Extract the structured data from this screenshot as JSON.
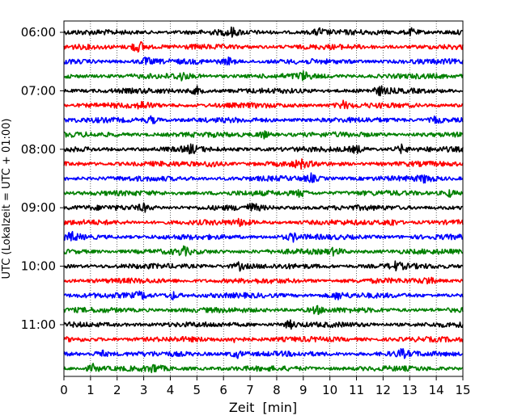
{
  "chart_data": {
    "type": "line",
    "subtype": "helicorder",
    "xlabel": "Zeit  [min]",
    "ylabel": "UTC (Lokalzeit = UTC + 01:00)",
    "xlim": [
      0,
      15
    ],
    "x_ticks": [
      "0",
      "1",
      "2",
      "3",
      "4",
      "5",
      "6",
      "7",
      "8",
      "9",
      "10",
      "11",
      "12",
      "13",
      "14",
      "15"
    ],
    "y_tick_labels": [
      "06:00",
      "07:00",
      "08:00",
      "09:00",
      "10:00",
      "11:00"
    ],
    "grid": "vertical dotted lines at each minute",
    "line_period_minutes": 15,
    "trace_color_cycle": [
      "#000000",
      "#ff0000",
      "#0000ff",
      "#008000"
    ],
    "traces": [
      {
        "start": "06:00",
        "color": "#000000",
        "events_min": [
          6.3,
          9.6,
          13.1
        ]
      },
      {
        "start": "06:15",
        "color": "#ff0000",
        "events_min": [
          2.7,
          2.9
        ]
      },
      {
        "start": "06:30",
        "color": "#0000ff",
        "events_min": [
          3.1,
          6.2
        ]
      },
      {
        "start": "06:45",
        "color": "#008000",
        "events_min": [
          4.4,
          9.0
        ]
      },
      {
        "start": "07:00",
        "color": "#000000",
        "events_min": [
          5.0,
          11.9
        ]
      },
      {
        "start": "07:15",
        "color": "#ff0000",
        "events_min": [
          3.0,
          10.5
        ]
      },
      {
        "start": "07:30",
        "color": "#0000ff",
        "events_min": [
          3.3,
          14.0
        ]
      },
      {
        "start": "07:45",
        "color": "#008000",
        "events_min": [
          7.5
        ]
      },
      {
        "start": "08:00",
        "color": "#000000",
        "events_min": [
          4.8,
          11.0,
          12.7
        ]
      },
      {
        "start": "08:15",
        "color": "#ff0000",
        "events_min": [
          5.6,
          8.9
        ]
      },
      {
        "start": "08:30",
        "color": "#0000ff",
        "events_min": [
          9.3,
          13.6
        ]
      },
      {
        "start": "08:45",
        "color": "#008000",
        "events_min": [
          8.9,
          14.5
        ]
      },
      {
        "start": "09:00",
        "color": "#000000",
        "events_min": [
          3.0,
          7.1
        ]
      },
      {
        "start": "09:15",
        "color": "#ff0000",
        "events_min": [
          6.7,
          12.3
        ]
      },
      {
        "start": "09:30",
        "color": "#0000ff",
        "events_min": [
          0.3,
          8.6
        ]
      },
      {
        "start": "09:45",
        "color": "#008000",
        "events_min": [
          4.5,
          10.2
        ]
      },
      {
        "start": "10:00",
        "color": "#000000",
        "events_min": [
          6.6,
          12.5
        ]
      },
      {
        "start": "10:15",
        "color": "#ff0000",
        "events_min": [
          13.7
        ]
      },
      {
        "start": "10:30",
        "color": "#0000ff",
        "events_min": [
          2.9,
          4.1,
          10.3
        ]
      },
      {
        "start": "10:45",
        "color": "#008000",
        "events_min": [
          9.5
        ]
      },
      {
        "start": "11:00",
        "color": "#000000",
        "events_min": [
          8.5
        ]
      },
      {
        "start": "11:15",
        "color": "#ff0000",
        "events_min": [
          6.5
        ]
      },
      {
        "start": "11:30",
        "color": "#0000ff",
        "events_min": [
          1.4,
          6.5,
          12.7
        ]
      },
      {
        "start": "11:45",
        "color": "#008000",
        "events_min": [
          1.1,
          3.4
        ]
      }
    ]
  }
}
